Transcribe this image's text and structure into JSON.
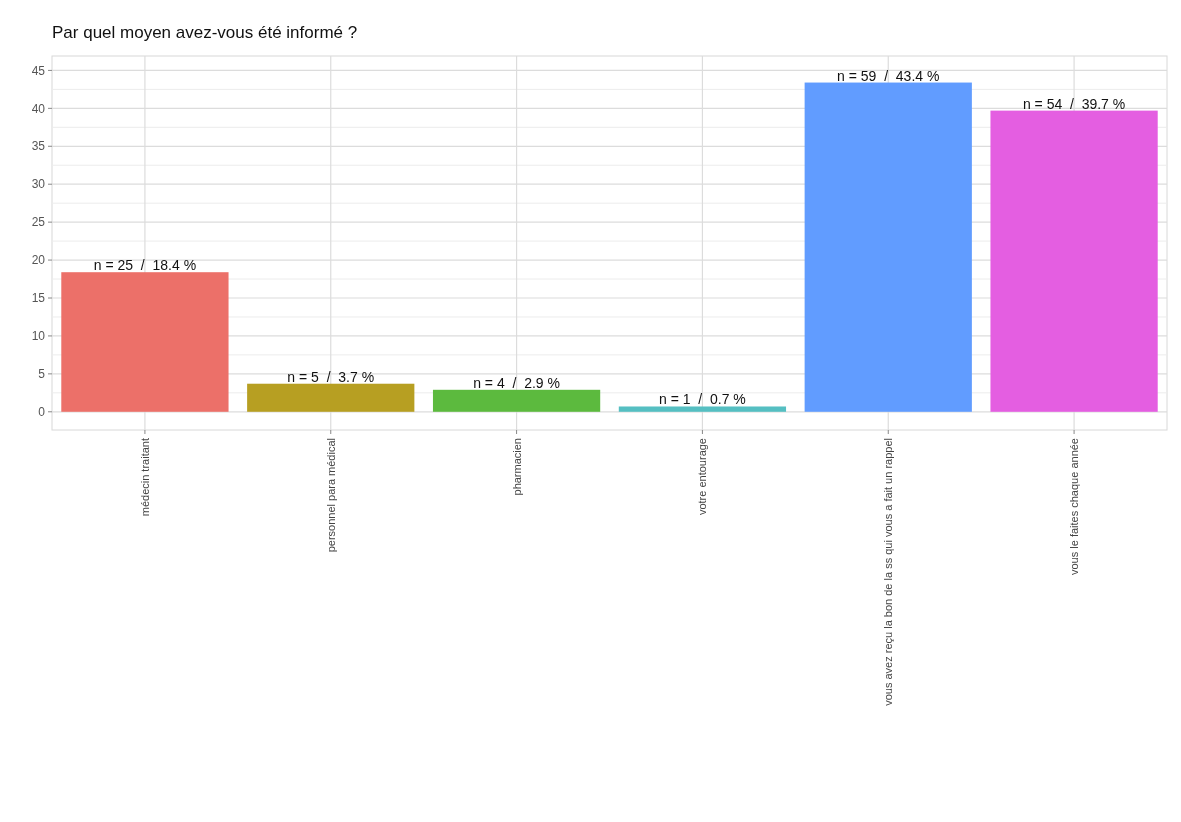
{
  "chart_data": {
    "type": "bar",
    "title": "Par quel moyen avez-vous été informé ?",
    "categories": [
      "médecin traitant",
      "personnel para médical",
      "pharmacien",
      "votre entourage",
      "vous avez reçu la bon de la ss qui vous a fait un rappel",
      "vous le faites chaque année"
    ],
    "values": [
      18.4,
      3.7,
      2.9,
      0.7,
      43.4,
      39.7
    ],
    "colors": [
      "#ec7069",
      "#b79f22",
      "#5cba3e",
      "#55bfc2",
      "#619cff",
      "#e45ee1"
    ],
    "value_labels": [
      "n = 25  /  18.4 %",
      "n = 5  /  3.7 %",
      "n = 4  /  2.9 %",
      "n = 1  /  0.7 %",
      "n = 59  /  43.4 %",
      "n = 54  /  39.7 %"
    ],
    "ylim": [
      -2.4,
      46.9
    ],
    "yticks": [
      0,
      5,
      10,
      15,
      20,
      25,
      30,
      35,
      40,
      45
    ],
    "grid": true
  }
}
